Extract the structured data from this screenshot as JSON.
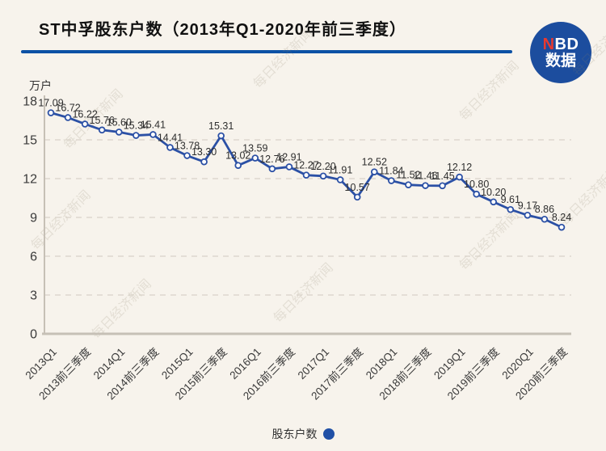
{
  "page": {
    "background": "#f7f3ec"
  },
  "header": {
    "title": "ST中孚股东户数（2013年Q1-2020年前三季度）",
    "divider_color": "#0b51a5",
    "logo": {
      "n": "N",
      "bd": "BD",
      "line2": "数据",
      "bg_color": "#1c4d9e",
      "n_color": "#e8392f",
      "text_color": "#ffffff"
    }
  },
  "watermark": {
    "text": "每日经济新闻"
  },
  "legend": {
    "label": "股东户数",
    "marker_color": "#2150a6"
  },
  "chart_data": {
    "type": "line",
    "title": "ST中孚股东户数（2013年Q1-2020年前三季度）",
    "unit_label": "万户",
    "series_name": "股东户数",
    "values": [
      17.09,
      16.72,
      16.22,
      15.76,
      15.6,
      15.34,
      15.41,
      14.41,
      13.78,
      13.3,
      15.31,
      13.02,
      13.59,
      12.76,
      12.91,
      12.27,
      12.2,
      11.91,
      10.57,
      12.52,
      11.84,
      11.52,
      11.46,
      11.45,
      12.12,
      10.8,
      10.2,
      9.61,
      9.17,
      8.86,
      8.24
    ],
    "value_labels": [
      "17.09",
      "16.72",
      "16.22",
      "15.76",
      "15.60",
      "15.34",
      "15.41",
      "14.41",
      "13.78",
      "13.30",
      "15.31",
      "13.02",
      "13.59",
      "12.76",
      "12.91",
      "12.27",
      "12.20",
      "11.91",
      "10.57",
      "12.52",
      "11.84",
      "11.52",
      "11.46",
      "11.45",
      "12.12",
      "10.80",
      "10.20",
      "9.61",
      "9.17",
      "8.86",
      "8.24"
    ],
    "x_tick_labels": [
      "2013Q1",
      "2013前三季度",
      "2014Q1",
      "2014前三季度",
      "2015Q1",
      "2015前三季度",
      "2016Q1",
      "2016前三季度",
      "2017Q1",
      "2017前三季度",
      "2018Q1",
      "2018前三季度",
      "2019Q1",
      "2019前三季度",
      "2020Q1",
      "2020前三季度"
    ],
    "x_tick_every": 2,
    "y_ticks": [
      0,
      3,
      6,
      9,
      12,
      15,
      18
    ],
    "ylim": [
      0,
      18
    ],
    "grid": true,
    "legend_position": "bottom",
    "line_color": "#2b50a5",
    "marker_fill": "#ffffff",
    "label_color": "#2e2e2e",
    "axis_color": "#c6c0b6",
    "grid_color": "#d8d2c8",
    "tick_label_color": "#3a3a3a"
  }
}
